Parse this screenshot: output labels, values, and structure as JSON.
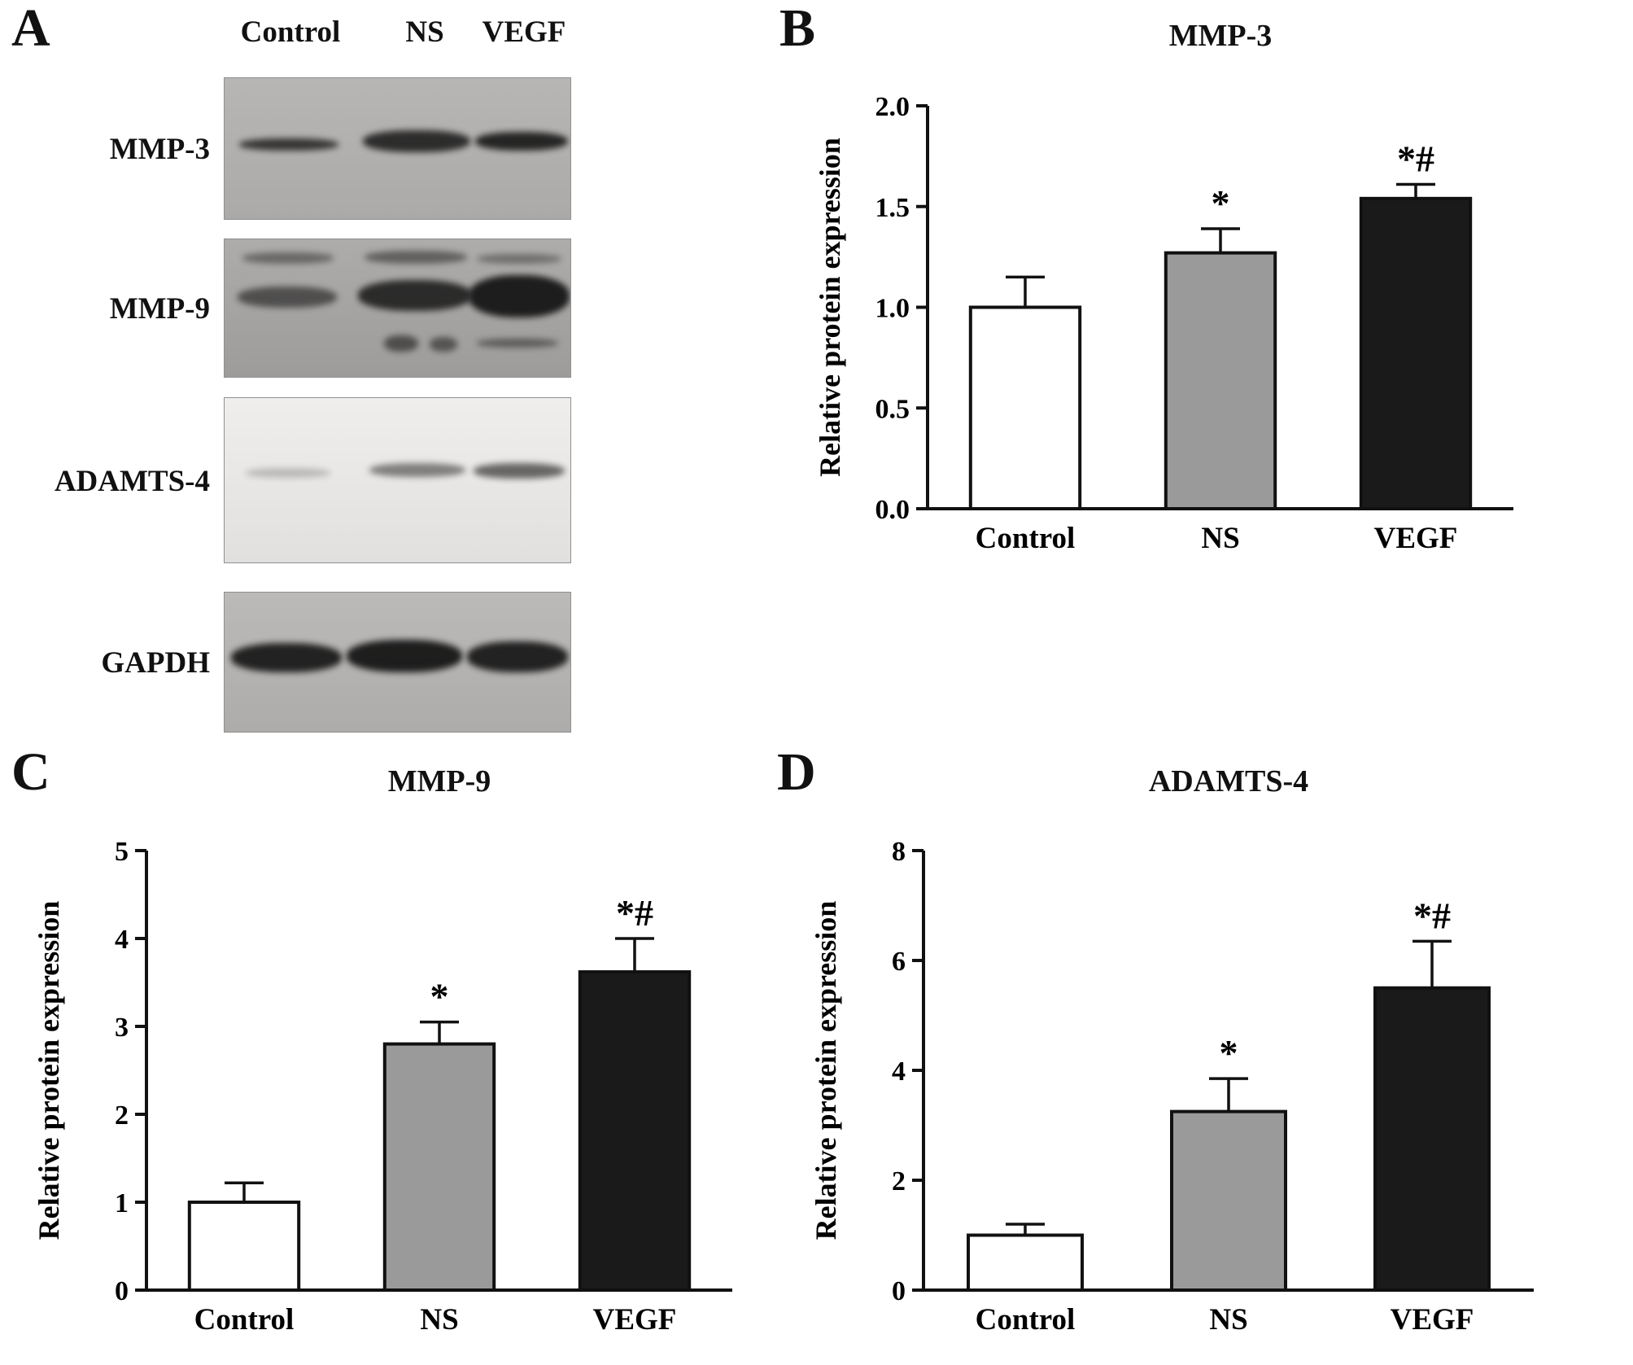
{
  "figure": {
    "panels": {
      "A": {
        "letter": "A",
        "lane_headers": [
          "Control",
          "NS",
          "VEGF"
        ],
        "blots": [
          {
            "label": "MMP-3"
          },
          {
            "label": "MMP-9"
          },
          {
            "label": "ADAMTS-4"
          },
          {
            "label": "GAPDH"
          }
        ]
      },
      "B": {
        "letter": "B"
      },
      "C": {
        "letter": "C"
      },
      "D": {
        "letter": "D"
      }
    }
  },
  "chart_data": [
    {
      "panel": "B",
      "type": "bar",
      "title": "MMP-3",
      "ylabel": "Relative protein expression",
      "categories": [
        "Control",
        "NS",
        "VEGF"
      ],
      "values": [
        1.0,
        1.27,
        1.54
      ],
      "errors": [
        0.15,
        0.12,
        0.07
      ],
      "annotations": [
        "",
        "*",
        "*#"
      ],
      "bar_colors": [
        "#ffffff",
        "#9a9a9a",
        "#1a1a1a"
      ],
      "ylim": [
        0,
        2.0
      ],
      "yticks": [
        0.0,
        0.5,
        1.0,
        1.5,
        2.0
      ],
      "ytick_labels": [
        "0.0",
        "0.5",
        "1.0",
        "1.5",
        "2.0"
      ],
      "grid": false,
      "legend": false
    },
    {
      "panel": "C",
      "type": "bar",
      "title": "MMP-9",
      "ylabel": "Relative protein expression",
      "categories": [
        "Control",
        "NS",
        "VEGF"
      ],
      "values": [
        1.0,
        2.8,
        3.62
      ],
      "errors": [
        0.22,
        0.25,
        0.38
      ],
      "annotations": [
        "",
        "*",
        "*#"
      ],
      "bar_colors": [
        "#ffffff",
        "#9a9a9a",
        "#1a1a1a"
      ],
      "ylim": [
        0,
        5
      ],
      "yticks": [
        0,
        1,
        2,
        3,
        4,
        5
      ],
      "ytick_labels": [
        "0",
        "1",
        "2",
        "3",
        "4",
        "5"
      ],
      "grid": false,
      "legend": false
    },
    {
      "panel": "D",
      "type": "bar",
      "title": "ADAMTS-4",
      "ylabel": "Relative protein expression",
      "categories": [
        "Control",
        "NS",
        "VEGF"
      ],
      "values": [
        1.0,
        3.25,
        5.5
      ],
      "errors": [
        0.2,
        0.6,
        0.85
      ],
      "annotations": [
        "",
        "*",
        "*#"
      ],
      "bar_colors": [
        "#ffffff",
        "#9a9a9a",
        "#1a1a1a"
      ],
      "ylim": [
        0,
        8
      ],
      "yticks": [
        0,
        2,
        4,
        6,
        8
      ],
      "ytick_labels": [
        "0",
        "2",
        "4",
        "6",
        "8"
      ],
      "grid": false,
      "legend": false
    }
  ]
}
